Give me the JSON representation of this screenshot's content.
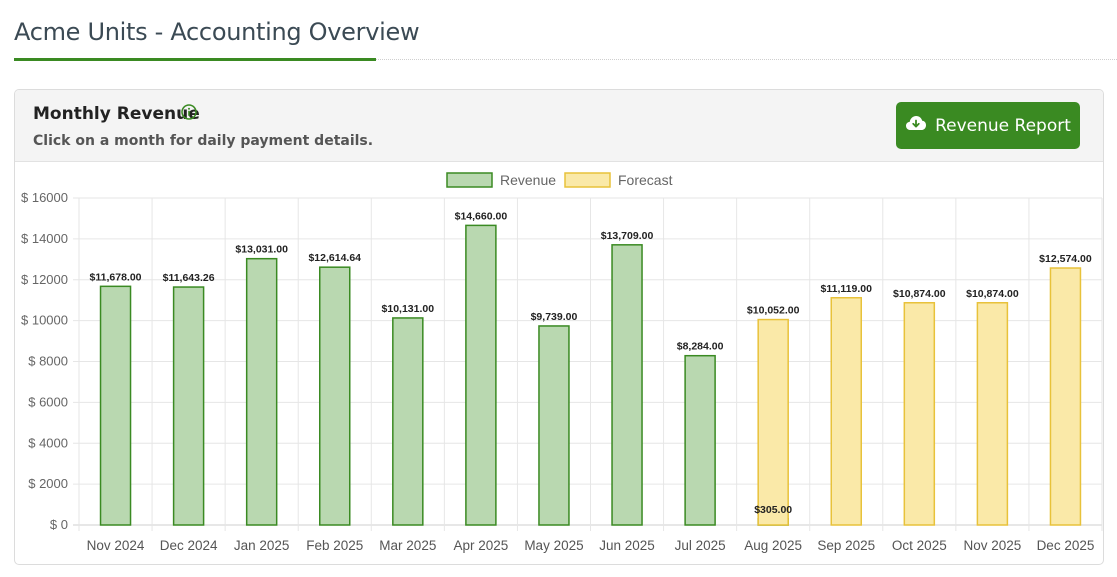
{
  "page": {
    "title": "Acme Units - Accounting Overview"
  },
  "panel": {
    "title": "Monthly Revenue",
    "subtitle": "Click on a month for daily payment details.",
    "info_icon": "info-circle-icon",
    "report_button": {
      "label": "Revenue Report",
      "icon": "cloud-download-icon"
    }
  },
  "colors": {
    "accent": "#3a8a22",
    "revenue_fill": "#b9d8b0",
    "revenue_border": "#3a8a22",
    "forecast_fill": "#fae9a8",
    "forecast_border": "#e8c23a"
  },
  "chart_data": {
    "type": "bar",
    "categories": [
      "Nov 2024",
      "Dec 2024",
      "Jan 2025",
      "Feb 2025",
      "Mar 2025",
      "Apr 2025",
      "May 2025",
      "Jun 2025",
      "Jul 2025",
      "Aug 2025",
      "Sep 2025",
      "Oct 2025",
      "Nov 2025",
      "Dec 2025"
    ],
    "series": [
      {
        "name": "Revenue",
        "values": [
          11678,
          11643.26,
          13031,
          12614.64,
          10131,
          14660,
          9739,
          13709,
          8284,
          305,
          null,
          null,
          null,
          null
        ]
      },
      {
        "name": "Forecast",
        "values": [
          null,
          null,
          null,
          null,
          null,
          null,
          null,
          null,
          null,
          10052,
          11119,
          10874,
          10874,
          12574
        ]
      }
    ],
    "value_labels": [
      "$11,678.00",
      "$11,643.26",
      "$13,031.00",
      "$12,614.64",
      "$10,131.00",
      "$14,660.00",
      "$9,739.00",
      "$13,709.00",
      "$8,284.00",
      "$305.00",
      "$10,052.00",
      "$11,119.00",
      "$10,874.00",
      "$10,874.00",
      "$12,574.00"
    ],
    "y_ticks": [
      "$ 0",
      "$ 2000",
      "$ 4000",
      "$ 6000",
      "$ 8000",
      "$ 10000",
      "$ 12000",
      "$ 14000",
      "$ 16000"
    ],
    "ylim": [
      0,
      16000
    ],
    "legend_position": "top-center",
    "grid": true
  }
}
